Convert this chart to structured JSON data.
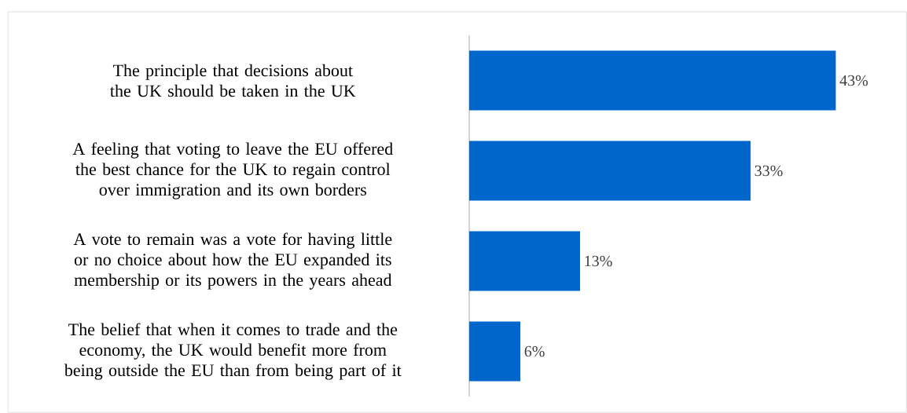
{
  "chart_data": {
    "type": "bar",
    "orientation": "horizontal",
    "categories": [
      "The principle that decisions about the UK should be taken in the UK",
      "A feeling that voting to leave the EU offered the best chance for the UK to regain control over immigration and its own borders",
      "A vote to remain was a vote for having little or no choice about how the EU expanded its membership or its powers in the years ahead",
      "The belief that when  it comes to trade and the economy, the UK would benefit more from being outside the EU than from being part of it"
    ],
    "values": [
      43,
      33,
      13,
      6
    ],
    "value_labels": [
      "43%",
      "33%",
      "13%",
      "6%"
    ],
    "color": "#0066cc"
  }
}
